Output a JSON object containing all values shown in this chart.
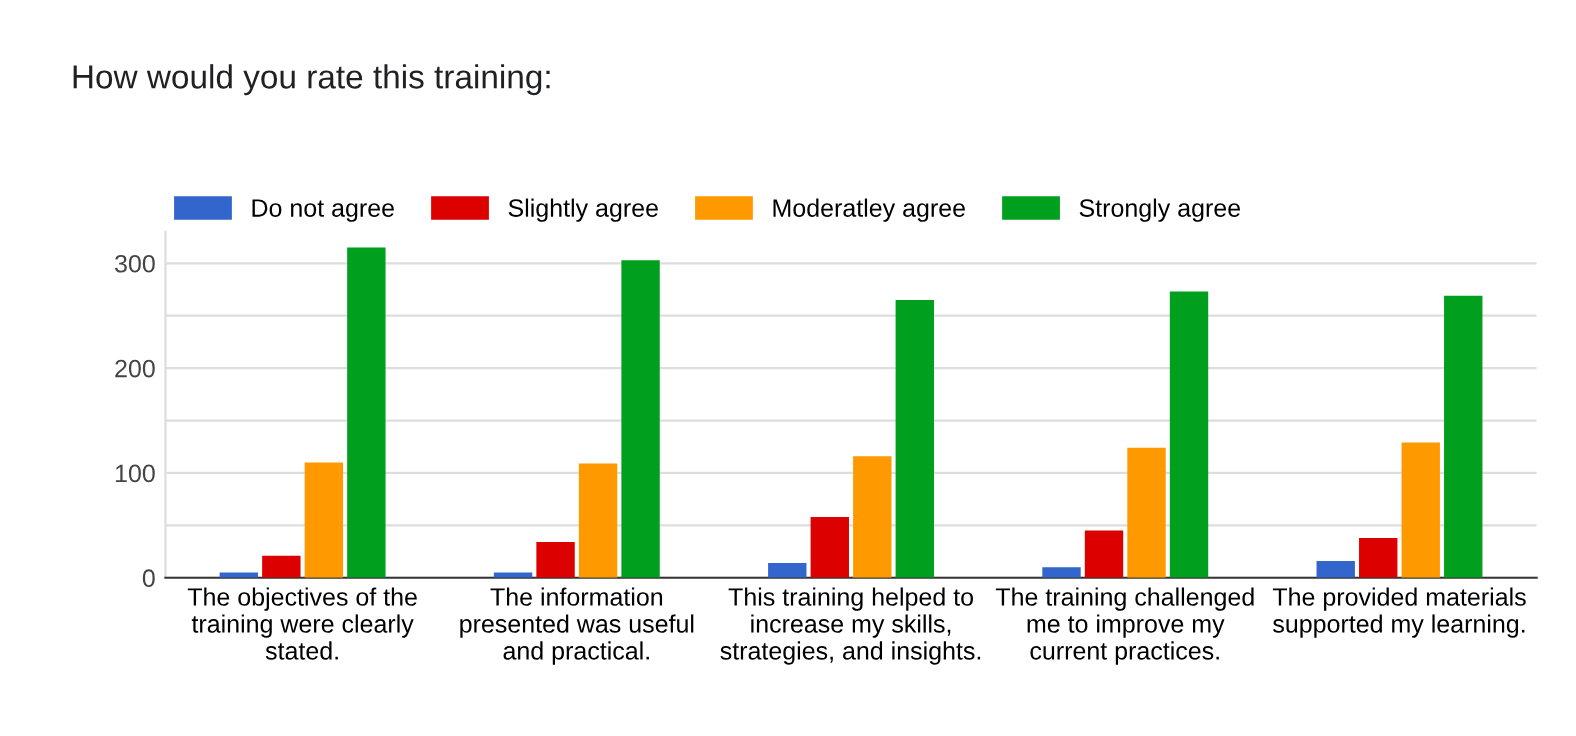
{
  "chart_data": {
    "type": "bar",
    "title": "How would you rate this training:",
    "categories": [
      "The objectives of the\ntraining were clearly\nstated.",
      "The information\npresented was useful\nand practical.",
      "This training helped to\nincrease my skills,\nstrategies, and insights.",
      "The training challenged\nme to improve my\ncurrent practices.",
      "The provided materials\nsupported my learning."
    ],
    "series": [
      {
        "name": "Do not agree",
        "color": "#3366cc",
        "values": [
          5,
          5,
          14,
          10,
          16
        ]
      },
      {
        "name": "Slightly agree",
        "color": "#dc0000",
        "values": [
          21,
          34,
          58,
          45,
          38
        ]
      },
      {
        "name": "Moderatley agree",
        "color": "#ff9900",
        "values": [
          110,
          109,
          116,
          124,
          129
        ]
      },
      {
        "name": "Strongly agree",
        "color": "#00a01e",
        "values": [
          315,
          303,
          265,
          273,
          269
        ]
      }
    ],
    "ylim": [
      0,
      330
    ],
    "yticks": [
      0,
      {
        "value": 50,
        "label": null
      },
      100,
      {
        "value": 150,
        "label": null
      },
      200,
      {
        "value": 250,
        "label": null
      },
      300
    ],
    "grid": "y",
    "legend": "top left"
  }
}
